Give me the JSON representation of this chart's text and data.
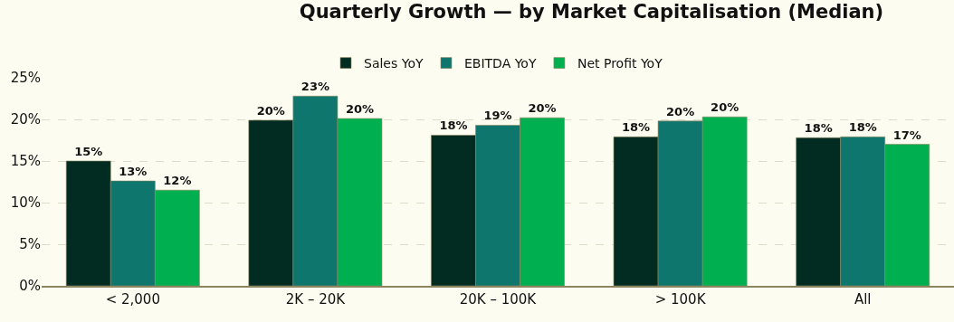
{
  "chart_data": {
    "type": "bar",
    "title": "Quarterly Growth — by Market Capitalisation (Median)",
    "categories": [
      "< 2,000",
      "2K – 20K",
      "20K – 100K",
      "> 100K",
      "All"
    ],
    "series": [
      {
        "name": "Sales YoY",
        "color": "#022c22",
        "values": [
          15.0,
          19.9,
          18.1,
          17.9,
          17.8
        ],
        "value_labels": [
          "15%",
          "20%",
          "18%",
          "18%",
          "18%"
        ]
      },
      {
        "name": "EBITDA YoY",
        "color": "#0f766e",
        "values": [
          12.6,
          22.8,
          19.3,
          19.8,
          17.9
        ],
        "value_labels": [
          "13%",
          "23%",
          "19%",
          "20%",
          "18%"
        ]
      },
      {
        "name": "Net Profit YoY",
        "color": "#00b050",
        "values": [
          11.5,
          20.1,
          20.2,
          20.3,
          17.0
        ],
        "value_labels": [
          "12%",
          "20%",
          "20%",
          "20%",
          "17%"
        ]
      }
    ],
    "ylim": [
      0,
      25
    ],
    "yticks": [
      {
        "value": 0,
        "label": "0%"
      },
      {
        "value": 5,
        "label": "5%"
      },
      {
        "value": 10,
        "label": "10%"
      },
      {
        "value": 15,
        "label": "15%"
      },
      {
        "value": 20,
        "label": "20%"
      },
      {
        "value": 25,
        "label": "25%"
      }
    ],
    "grid": "y",
    "legend": "top"
  }
}
